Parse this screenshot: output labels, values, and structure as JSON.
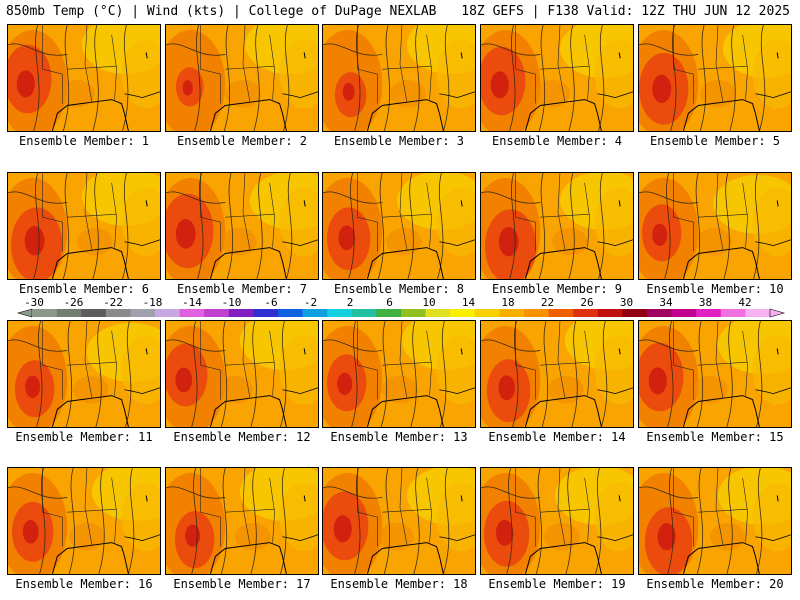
{
  "header": {
    "left": "850mb Temp (°C) | Wind (kts) | College of DuPage NEXLAB",
    "right": "18Z GEFS | F138 Valid: 12Z THU JUN 12 2025"
  },
  "members": [
    "Ensemble Member: 1",
    "Ensemble Member: 2",
    "Ensemble Member: 3",
    "Ensemble Member: 4",
    "Ensemble Member: 5",
    "Ensemble Member: 6",
    "Ensemble Member: 7",
    "Ensemble Member: 8",
    "Ensemble Member: 9",
    "Ensemble Member: 10",
    "Ensemble Member: 11",
    "Ensemble Member: 12",
    "Ensemble Member: 13",
    "Ensemble Member: 14",
    "Ensemble Member: 15",
    "Ensemble Member: 16",
    "Ensemble Member: 17",
    "Ensemble Member: 18",
    "Ensemble Member: 19",
    "Ensemble Member: 20"
  ],
  "colorbar": {
    "labels": [
      "-30",
      "-26",
      "-22",
      "-18",
      "-14",
      "-10",
      "-6",
      "-2",
      "2",
      "6",
      "10",
      "14",
      "18",
      "22",
      "26",
      "30",
      "34",
      "38",
      "42"
    ],
    "colors": [
      "#8a9a8a",
      "#6f8070",
      "#5c5c5c",
      "#8a8a8a",
      "#a0a0b0",
      "#c8a8e0",
      "#e060e0",
      "#c040d0",
      "#8020c0",
      "#3030d0",
      "#1060e0",
      "#10a0e0",
      "#10d0e0",
      "#20c0a0",
      "#40b040",
      "#90c020",
      "#e0e020",
      "#f8f000",
      "#f8d000",
      "#f8b000",
      "#f89000",
      "#f06000",
      "#e03010",
      "#c01010",
      "#900010",
      "#a00060",
      "#c00090",
      "#e020c0",
      "#f070e0",
      "#f8b0f0"
    ]
  }
}
